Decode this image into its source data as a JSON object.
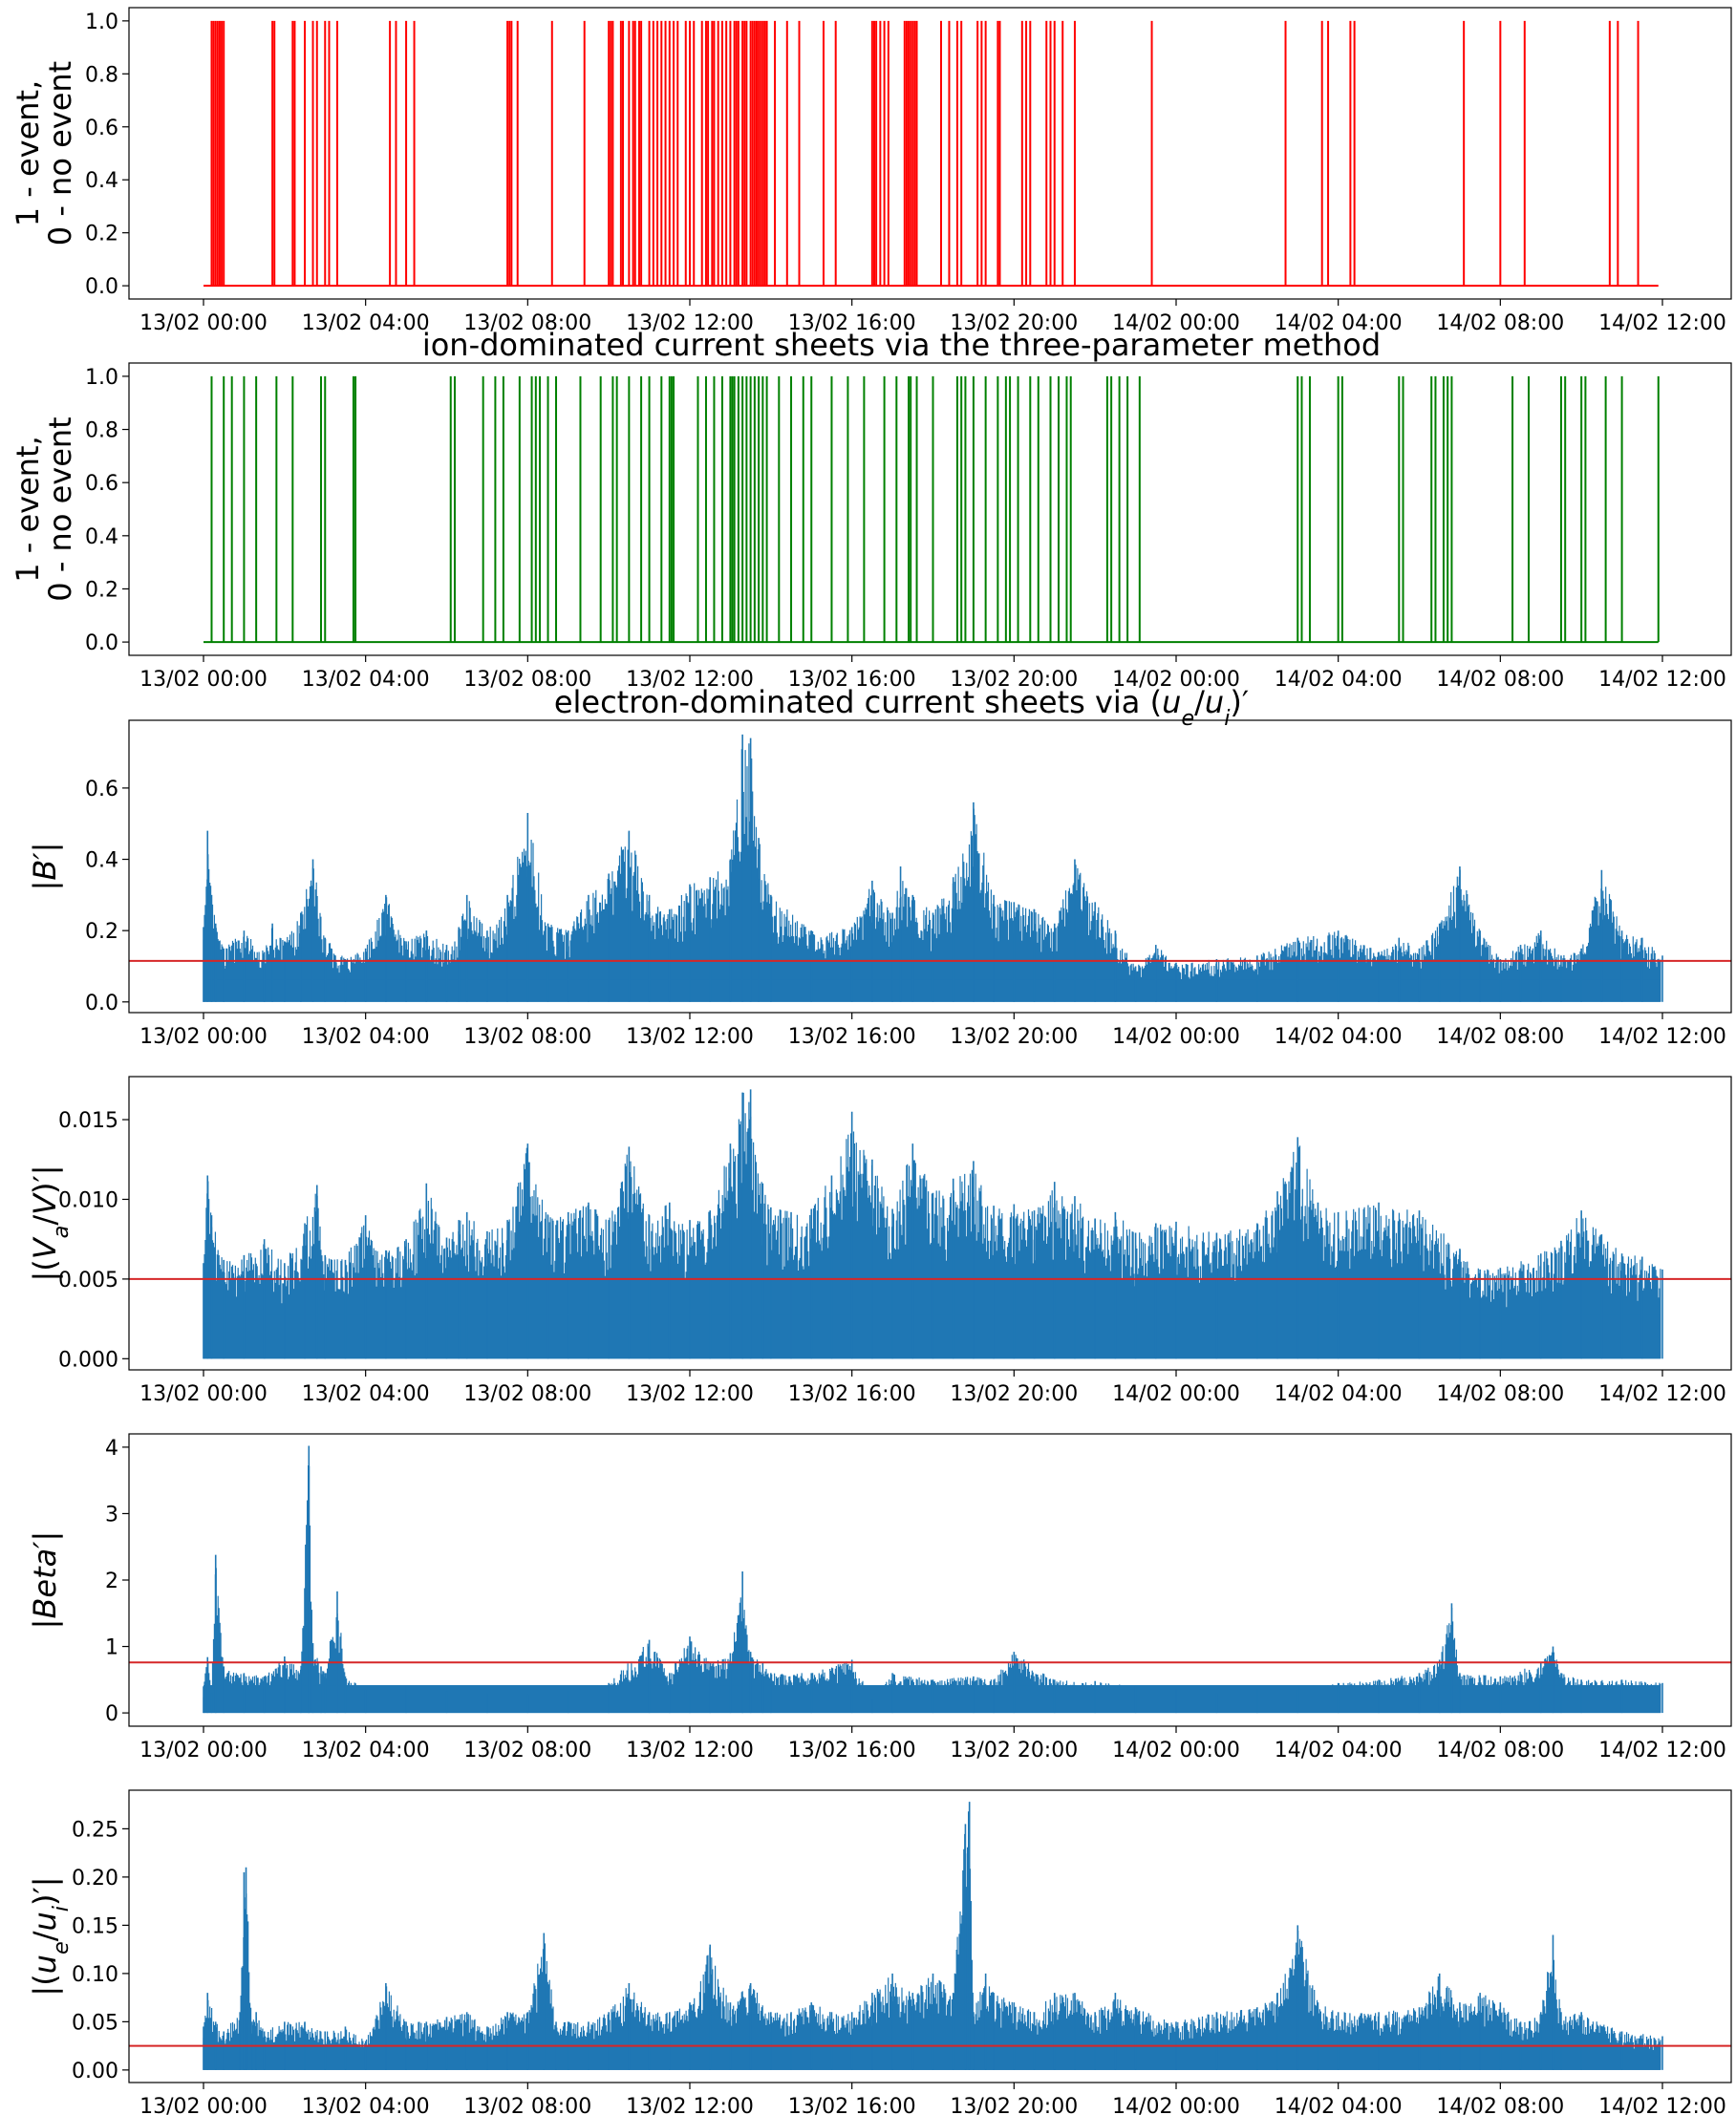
{
  "chart_data": [
    {
      "type": "event",
      "title": "",
      "ylabel": "1 - event,\n0 - no event",
      "ylim": [
        -0.05,
        1.05
      ],
      "yticks": [
        "0.0",
        "0.2",
        "0.4",
        "0.6",
        "0.8",
        "1.0"
      ],
      "xticks": [
        "13/02 00:00",
        "13/02 04:00",
        "13/02 08:00",
        "13/02 12:00",
        "13/02 16:00",
        "13/02 20:00",
        "14/02 00:00",
        "14/02 04:00",
        "14/02 08:00",
        "14/02 12:00"
      ],
      "xrange_hours": [
        0,
        36
      ],
      "color": "#ff0000",
      "series": [
        {
          "event_hours": [
            0.2,
            0.25,
            0.3,
            0.35,
            0.4,
            0.45,
            0.5,
            1.7,
            1.75,
            2.2,
            2.25,
            2.5,
            2.7,
            2.8,
            3.0,
            3.1,
            3.3,
            4.6,
            4.75,
            5.0,
            5.2,
            7.5,
            7.55,
            7.6,
            7.75,
            8.6,
            9.4,
            10.0,
            10.05,
            10.1,
            10.3,
            10.35,
            10.5,
            10.6,
            10.65,
            10.75,
            10.8,
            11.0,
            11.1,
            11.2,
            11.3,
            11.4,
            11.5,
            11.6,
            11.7,
            11.9,
            12.0,
            12.1,
            12.3,
            12.4,
            12.45,
            12.55,
            12.6,
            12.7,
            12.8,
            12.9,
            13.0,
            13.1,
            13.15,
            13.2,
            13.3,
            13.35,
            13.4,
            13.5,
            13.55,
            13.6,
            13.65,
            13.7,
            13.75,
            13.8,
            13.85,
            13.9,
            14.1,
            14.4,
            14.7,
            15.3,
            15.6,
            16.5,
            16.55,
            16.6,
            16.7,
            16.8,
            16.9,
            17.3,
            17.35,
            17.4,
            17.45,
            17.5,
            17.55,
            17.6,
            18.2,
            18.4,
            18.6,
            18.7,
            19.1,
            19.2,
            19.3,
            19.6,
            19.65,
            20.2,
            20.3,
            20.4,
            20.8,
            20.9,
            21.0,
            21.2,
            21.5,
            23.4,
            26.7,
            27.6,
            27.75,
            28.3,
            28.4,
            31.1,
            32.0,
            32.6,
            34.7,
            34.9,
            35.4
          ]
        }
      ],
      "baseline": 0
    },
    {
      "type": "event",
      "title": "ion-dominated current sheets via the three-parameter method",
      "ylabel": "1 - event,\n0 - no event",
      "ylim": [
        -0.05,
        1.05
      ],
      "yticks": [
        "0.0",
        "0.2",
        "0.4",
        "0.6",
        "0.8",
        "1.0"
      ],
      "xticks": [
        "13/02 00:00",
        "13/02 04:00",
        "13/02 08:00",
        "13/02 12:00",
        "13/02 16:00",
        "13/02 20:00",
        "14/02 00:00",
        "14/02 04:00",
        "14/02 08:00",
        "14/02 12:00"
      ],
      "xrange_hours": [
        0,
        36
      ],
      "color": "#008000",
      "series": [
        {
          "event_hours": [
            0.2,
            0.5,
            0.7,
            1.0,
            1.3,
            1.8,
            2.2,
            2.9,
            3.0,
            3.7,
            3.75,
            6.1,
            6.2,
            6.9,
            7.2,
            7.4,
            7.8,
            8.1,
            8.2,
            8.3,
            8.5,
            8.7,
            9.3,
            9.8,
            10.1,
            10.2,
            10.5,
            10.8,
            11.0,
            11.3,
            11.5,
            11.55,
            11.6,
            12.2,
            12.4,
            12.6,
            12.8,
            13.0,
            13.05,
            13.1,
            13.2,
            13.3,
            13.4,
            13.5,
            13.6,
            13.7,
            13.8,
            13.9,
            14.2,
            14.5,
            14.8,
            15.0,
            15.5,
            15.9,
            16.3,
            16.8,
            17.1,
            17.4,
            17.45,
            17.6,
            18.0,
            18.6,
            18.7,
            18.8,
            19.0,
            19.3,
            19.6,
            19.8,
            19.9,
            20.1,
            20.4,
            20.6,
            20.9,
            21.1,
            21.3,
            21.4,
            22.3,
            22.4,
            22.6,
            22.8,
            23.1,
            27.0,
            27.1,
            27.3,
            28.0,
            28.1,
            29.5,
            29.6,
            30.3,
            30.4,
            30.6,
            30.7,
            30.8,
            32.3,
            32.7,
            33.5,
            33.6,
            34.0,
            34.1,
            34.6,
            35.0,
            35.9
          ]
        }
      ],
      "baseline": 0
    },
    {
      "type": "line",
      "title": "electron-dominated current sheets via (ue/ui)′",
      "title_parts": {
        "pre": "electron-dominated current sheets via (",
        "a": "u",
        "sa": "e",
        "slash": "/",
        "b": "u",
        "sb": "i",
        "post": ")′"
      },
      "ylabel": "|B′|",
      "ylim": [
        -0.03,
        0.79
      ],
      "yticks": [
        "0.0",
        "0.2",
        "0.4",
        "0.6"
      ],
      "xticks": [
        "13/02 00:00",
        "13/02 04:00",
        "13/02 08:00",
        "13/02 12:00",
        "13/02 16:00",
        "13/02 20:00",
        "14/02 00:00",
        "14/02 04:00",
        "14/02 08:00",
        "14/02 12:00"
      ],
      "xrange_hours": [
        0,
        36
      ],
      "color": "#1f77b4",
      "threshold": 0.115,
      "threshold_color": "#d62728",
      "envelope": {
        "x": [
          0,
          0.1,
          0.2,
          0.3,
          0.5,
          1.0,
          1.5,
          1.7,
          2.0,
          2.4,
          2.7,
          3.0,
          3.5,
          4.0,
          4.5,
          5.0,
          5.5,
          6.0,
          6.3,
          6.5,
          7.0,
          7.5,
          8.0,
          8.5,
          9.0,
          9.5,
          10.0,
          10.5,
          11.0,
          11.5,
          12.0,
          12.5,
          13.0,
          13.3,
          13.5,
          13.7,
          14.0,
          15.0,
          16.0,
          16.5,
          17.0,
          17.2,
          17.5,
          18.0,
          18.5,
          19.0,
          19.5,
          20.0,
          20.5,
          21.0,
          21.5,
          22.0,
          22.5,
          23.0,
          23.5,
          24.0,
          25.0,
          26.0,
          27.0,
          28.0,
          29.0,
          29.5,
          30.0,
          30.5,
          31.0,
          31.5,
          32.0,
          32.5,
          33.0,
          33.5,
          34.0,
          34.5,
          35.0,
          35.5,
          36.0
        ],
        "y": [
          0.21,
          0.48,
          0.3,
          0.22,
          0.15,
          0.2,
          0.14,
          0.22,
          0.17,
          0.25,
          0.4,
          0.18,
          0.12,
          0.15,
          0.3,
          0.17,
          0.2,
          0.16,
          0.21,
          0.3,
          0.2,
          0.3,
          0.53,
          0.22,
          0.2,
          0.3,
          0.36,
          0.48,
          0.3,
          0.26,
          0.33,
          0.35,
          0.4,
          0.75,
          0.74,
          0.46,
          0.3,
          0.2,
          0.21,
          0.34,
          0.25,
          0.38,
          0.3,
          0.25,
          0.35,
          0.56,
          0.3,
          0.28,
          0.26,
          0.22,
          0.4,
          0.28,
          0.2,
          0.1,
          0.16,
          0.11,
          0.12,
          0.13,
          0.18,
          0.2,
          0.14,
          0.18,
          0.15,
          0.22,
          0.38,
          0.2,
          0.12,
          0.16,
          0.2,
          0.13,
          0.15,
          0.37,
          0.2,
          0.18,
          0.13
        ]
      }
    },
    {
      "type": "line",
      "title": "",
      "ylabel": "|(Va/V)′|",
      "ylabel_parts": {
        "pre": "|(",
        "a": "V",
        "sa": "a",
        "slash": "/",
        "b": "V",
        "sb": "",
        "post": ")′|"
      },
      "ylim": [
        -0.0007,
        0.0177
      ],
      "yticks": [
        "0.000",
        "0.005",
        "0.010",
        "0.015"
      ],
      "xticks": [
        "13/02 00:00",
        "13/02 04:00",
        "13/02 08:00",
        "13/02 12:00",
        "13/02 16:00",
        "13/02 20:00",
        "14/02 00:00",
        "14/02 04:00",
        "14/02 08:00",
        "14/02 12:00"
      ],
      "xrange_hours": [
        0,
        36
      ],
      "color": "#1f77b4",
      "threshold": 0.005,
      "threshold_color": "#d62728",
      "envelope": {
        "x": [
          0,
          0.1,
          0.2,
          0.5,
          1.0,
          1.5,
          2.0,
          2.5,
          2.8,
          3.0,
          3.5,
          4.0,
          4.5,
          5.0,
          5.5,
          6.0,
          6.3,
          6.5,
          7.0,
          7.5,
          8.0,
          8.5,
          9.0,
          9.5,
          10.0,
          10.5,
          11.0,
          11.5,
          12.0,
          12.5,
          13.0,
          13.3,
          13.5,
          13.8,
          14.0,
          14.5,
          15.0,
          15.5,
          16.0,
          16.5,
          17.0,
          17.5,
          18.0,
          18.5,
          19.0,
          19.5,
          20.0,
          20.5,
          21.0,
          21.5,
          22.0,
          22.5,
          23.0,
          23.5,
          24.0,
          25.0,
          26.0,
          26.5,
          27.0,
          27.5,
          28.0,
          29.0,
          30.0,
          31.0,
          31.5,
          32.0,
          33.0,
          33.5,
          34.0,
          34.5,
          35.0,
          35.5,
          36.0
        ],
        "y": [
          0.006,
          0.0115,
          0.009,
          0.0062,
          0.0065,
          0.0075,
          0.006,
          0.0085,
          0.0109,
          0.0065,
          0.0062,
          0.009,
          0.0068,
          0.0075,
          0.011,
          0.0076,
          0.0087,
          0.0092,
          0.008,
          0.0087,
          0.0135,
          0.009,
          0.0092,
          0.0098,
          0.0087,
          0.0133,
          0.009,
          0.0098,
          0.0087,
          0.0093,
          0.0135,
          0.0167,
          0.0169,
          0.011,
          0.0095,
          0.0092,
          0.0094,
          0.0115,
          0.0155,
          0.0125,
          0.0094,
          0.0135,
          0.0104,
          0.0113,
          0.0124,
          0.0096,
          0.0097,
          0.0093,
          0.0111,
          0.0102,
          0.0088,
          0.0092,
          0.0079,
          0.0085,
          0.0086,
          0.0079,
          0.0085,
          0.0105,
          0.0139,
          0.0098,
          0.0092,
          0.0098,
          0.0093,
          0.0069,
          0.0056,
          0.0057,
          0.0066,
          0.0074,
          0.0093,
          0.0078,
          0.0066,
          0.0064,
          0.0056
        ]
      }
    },
    {
      "type": "line",
      "title": "",
      "ylabel": "|Beta′|",
      "ylim": [
        -0.2,
        4.2
      ],
      "yticks": [
        "0",
        "1",
        "2",
        "3",
        "4"
      ],
      "xticks": [
        "13/02 00:00",
        "13/02 04:00",
        "13/02 08:00",
        "13/02 12:00",
        "13/02 16:00",
        "13/02 20:00",
        "14/02 00:00",
        "14/02 04:00",
        "14/02 08:00",
        "14/02 12:00"
      ],
      "xrange_hours": [
        0,
        36
      ],
      "color": "#1f77b4",
      "threshold": 0.76,
      "threshold_color": "#d62728",
      "envelope": {
        "x": [
          0,
          0.1,
          0.2,
          0.3,
          0.5,
          1.0,
          1.5,
          2.0,
          2.4,
          2.6,
          2.7,
          2.9,
          3.0,
          3.3,
          3.5,
          4.0,
          5.0,
          6.0,
          7.0,
          8.0,
          9.0,
          10.0,
          11.0,
          11.5,
          12.0,
          12.5,
          13.0,
          13.3,
          13.5,
          13.8,
          14.0,
          15.0,
          16.0,
          16.5,
          17.0,
          18.0,
          19.0,
          19.5,
          20.0,
          21.0,
          22.0,
          23.0,
          24.0,
          25.0,
          26.0,
          27.0,
          28.0,
          29.0,
          30.0,
          30.5,
          30.8,
          31.0,
          32.0,
          33.0,
          33.3,
          33.5,
          34.0,
          35.0,
          36.0
        ],
        "y": [
          0.4,
          0.84,
          0.3,
          2.38,
          0.7,
          0.6,
          0.55,
          0.85,
          0.65,
          4.02,
          1.05,
          0.7,
          0.6,
          1.83,
          0.55,
          0.35,
          0.4,
          0.33,
          0.3,
          0.28,
          0.32,
          0.45,
          1.1,
          0.6,
          1.15,
          0.75,
          0.9,
          2.13,
          0.92,
          0.75,
          0.6,
          0.6,
          0.8,
          0.2,
          0.6,
          0.5,
          0.55,
          0.5,
          0.92,
          0.5,
          0.48,
          0.4,
          0.35,
          0.3,
          0.35,
          0.4,
          0.45,
          0.5,
          0.6,
          0.8,
          1.65,
          0.6,
          0.55,
          0.75,
          1.0,
          0.6,
          0.5,
          0.5,
          0.45
        ]
      }
    },
    {
      "type": "line",
      "title": "",
      "ylabel": "|(ue/ui)′|",
      "ylabel_parts": {
        "pre": "|(",
        "a": "u",
        "sa": "e",
        "slash": "/",
        "b": "u",
        "sb": "i",
        "post": ")′|"
      },
      "ylim": [
        -0.013,
        0.29
      ],
      "yticks": [
        "0.00",
        "0.05",
        "0.10",
        "0.15",
        "0.20",
        "0.25"
      ],
      "xticks": [
        "13/02 00:00",
        "13/02 04:00",
        "13/02 08:00",
        "13/02 12:00",
        "13/02 16:00",
        "13/02 20:00",
        "14/02 00:00",
        "14/02 04:00",
        "14/02 08:00",
        "14/02 12:00"
      ],
      "xrange_hours": [
        0,
        36
      ],
      "color": "#1f77b4",
      "threshold": 0.025,
      "threshold_color": "#d62728",
      "envelope": {
        "x": [
          0,
          0.1,
          0.3,
          0.5,
          0.9,
          1.0,
          1.05,
          1.2,
          1.3,
          1.5,
          2.0,
          2.5,
          3.0,
          3.5,
          4.0,
          4.5,
          5.0,
          5.5,
          6.0,
          6.5,
          7.0,
          7.5,
          8.0,
          8.4,
          8.7,
          9.0,
          9.5,
          10.0,
          10.5,
          11.0,
          11.5,
          12.0,
          12.5,
          13.0,
          13.5,
          14.0,
          14.5,
          15.0,
          15.5,
          16.0,
          16.5,
          17.0,
          17.5,
          18.0,
          18.5,
          18.8,
          18.9,
          19.0,
          19.3,
          19.5,
          20.0,
          20.5,
          21.0,
          21.5,
          22.0,
          22.5,
          23.0,
          24.0,
          25.0,
          26.0,
          26.5,
          27.0,
          27.5,
          28.0,
          29.0,
          30.0,
          30.5,
          31.0,
          31.5,
          32.0,
          32.5,
          33.0,
          33.3,
          33.5,
          34.0,
          35.0,
          36.0
        ],
        "y": [
          0.045,
          0.08,
          0.05,
          0.04,
          0.06,
          0.205,
          0.21,
          0.05,
          0.06,
          0.04,
          0.05,
          0.05,
          0.04,
          0.045,
          0.03,
          0.09,
          0.05,
          0.05,
          0.055,
          0.06,
          0.045,
          0.06,
          0.06,
          0.142,
          0.05,
          0.05,
          0.05,
          0.06,
          0.09,
          0.06,
          0.06,
          0.07,
          0.13,
          0.07,
          0.09,
          0.06,
          0.06,
          0.07,
          0.06,
          0.06,
          0.08,
          0.1,
          0.08,
          0.1,
          0.08,
          0.255,
          0.278,
          0.06,
          0.1,
          0.08,
          0.07,
          0.06,
          0.08,
          0.08,
          0.06,
          0.08,
          0.065,
          0.05,
          0.06,
          0.065,
          0.08,
          0.15,
          0.07,
          0.06,
          0.06,
          0.065,
          0.1,
          0.07,
          0.08,
          0.07,
          0.05,
          0.06,
          0.14,
          0.06,
          0.06,
          0.04,
          0.035
        ]
      }
    }
  ]
}
